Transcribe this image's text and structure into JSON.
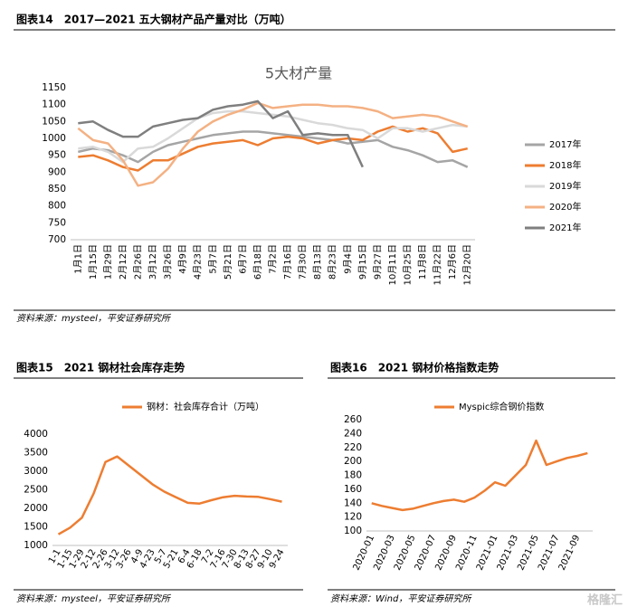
{
  "watermark": "格隆汇",
  "chart_data": [
    {
      "type": "line",
      "caption": "图表14　2017—2021 五大钢材产品产量对比（万吨）",
      "title": "5大材产量",
      "source": "资料来源：mysteel，平安证券研究所",
      "categories": [
        "1月1日",
        "1月15日",
        "1月29日",
        "2月12日",
        "2月26日",
        "3月12日",
        "3月26日",
        "4月9日",
        "4月23日",
        "5月7日",
        "5月21日",
        "6月7日",
        "6月18日",
        "7月2日",
        "7月16日",
        "7月30日",
        "8月13日",
        "8月23日",
        "9月4日",
        "9月15日",
        "9月27日",
        "10月11日",
        "10月25日",
        "11月8日",
        "11月22日",
        "12月6日",
        "12月20日"
      ],
      "series": [
        {
          "name": "2017年",
          "color": "#a5a5a5",
          "values": [
            960,
            970,
            965,
            950,
            930,
            960,
            980,
            990,
            1000,
            1010,
            1015,
            1020,
            1020,
            1015,
            1010,
            1005,
            1000,
            995,
            985,
            990,
            995,
            975,
            965,
            950,
            930,
            935,
            915
          ]
        },
        {
          "name": "2018年",
          "color": "#ed7d31",
          "values": [
            945,
            950,
            935,
            915,
            905,
            935,
            935,
            955,
            975,
            985,
            990,
            995,
            980,
            1000,
            1005,
            1000,
            985,
            995,
            1000,
            995,
            1020,
            1035,
            1020,
            1030,
            1015,
            960,
            970
          ]
        },
        {
          "name": "2019年",
          "color": "#d9d9d9",
          "values": [
            970,
            975,
            960,
            930,
            970,
            975,
            1000,
            1030,
            1060,
            1075,
            1080,
            1080,
            1075,
            1070,
            1065,
            1055,
            1045,
            1040,
            1030,
            1025,
            1000,
            1030,
            1030,
            1020,
            1030,
            1040,
            1035
          ]
        },
        {
          "name": "2020年",
          "color": "#f4b183",
          "values": [
            1030,
            995,
            985,
            935,
            860,
            870,
            910,
            970,
            1020,
            1050,
            1070,
            1085,
            1105,
            1090,
            1095,
            1100,
            1100,
            1095,
            1095,
            1090,
            1080,
            1060,
            1065,
            1070,
            1065,
            1050,
            1035
          ]
        },
        {
          "name": "2021年",
          "color": "#7f7f7f",
          "values": [
            1045,
            1050,
            1025,
            1005,
            1005,
            1035,
            1045,
            1055,
            1060,
            1085,
            1095,
            1100,
            1110,
            1060,
            1080,
            1010,
            1015,
            1010,
            1010,
            915,
            null,
            null,
            null,
            null,
            null,
            null,
            null
          ]
        }
      ],
      "ylim": [
        700,
        1150
      ],
      "yticks": [
        700,
        750,
        800,
        850,
        900,
        950,
        1000,
        1050,
        1100,
        1150
      ],
      "grid": false,
      "legend": "right"
    },
    {
      "type": "line",
      "caption": "图表15　2021 钢材社会库存走势",
      "source": "资料来源：mysteel，平安证券研究所",
      "categories": [
        "1-1",
        "1-15",
        "1-29",
        "2-12",
        "2-26",
        "3-12",
        "3-26",
        "4-9",
        "4-23",
        "5-7",
        "5-21",
        "6-4",
        "6-18",
        "7-2",
        "7-16",
        "7-30",
        "8-13",
        "8-27",
        "9-10",
        "9-24"
      ],
      "series": [
        {
          "name": "钢材：社会库存合计（万吨）",
          "color": "#ed7d31",
          "values": [
            1300,
            1480,
            1750,
            2400,
            3250,
            3400,
            3150,
            2900,
            2650,
            2450,
            2300,
            2150,
            2130,
            2220,
            2300,
            2340,
            2320,
            2310,
            2250,
            2180
          ]
        }
      ],
      "ylim": [
        1000,
        4000
      ],
      "yticks": [
        1000,
        1500,
        2000,
        2500,
        3000,
        3500,
        4000
      ],
      "grid": false,
      "legend": "top"
    },
    {
      "type": "line",
      "caption": "图表16　2021 钢材价格指数走势",
      "source": "资料来源：Wind，平安证券研究所",
      "categories": [
        "2020-01",
        null,
        "2020-03",
        null,
        "2020-05",
        null,
        "2020-07",
        null,
        "2020-09",
        null,
        "2020-11",
        null,
        "2021-01",
        null,
        "2021-03",
        null,
        "2021-05",
        null,
        "2021-07",
        null,
        "2021-09",
        null
      ],
      "series": [
        {
          "name": "Myspic综合钢价指数",
          "color": "#ed7d31",
          "values": [
            140,
            136,
            133,
            130,
            132,
            136,
            140,
            143,
            145,
            142,
            148,
            158,
            170,
            165,
            180,
            195,
            230,
            195,
            200,
            205,
            208,
            212
          ]
        }
      ],
      "ylim": [
        100,
        260
      ],
      "yticks": [
        100,
        120,
        140,
        160,
        180,
        200,
        220,
        240,
        260
      ],
      "grid": false,
      "legend": "top"
    }
  ]
}
